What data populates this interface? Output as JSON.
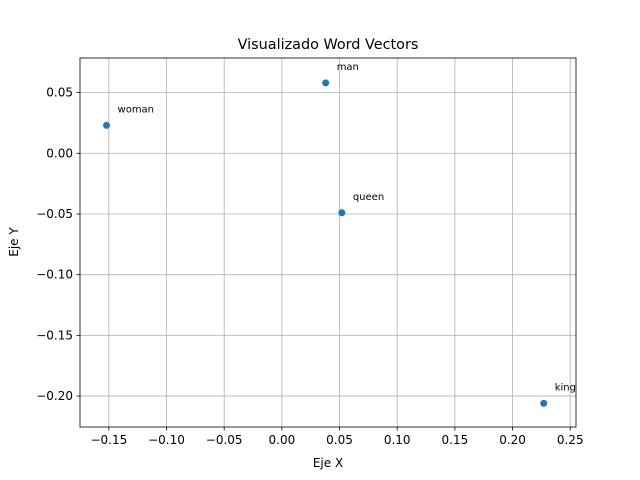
{
  "chart_data": {
    "type": "scatter",
    "title": "Visualizado Word Vectors",
    "xlabel": "Eje X",
    "ylabel": "Eje Y",
    "xlim": [
      -0.175,
      0.255
    ],
    "ylim": [
      -0.2255,
      0.0785
    ],
    "xticks": [
      -0.15,
      -0.1,
      -0.05,
      0.0,
      0.05,
      0.1,
      0.15,
      0.2,
      0.25
    ],
    "xtick_labels": [
      "−0.15",
      "−0.10",
      "−0.05",
      "0.00",
      "0.05",
      "0.10",
      "0.15",
      "0.20",
      "0.25"
    ],
    "yticks": [
      0.05,
      0.0,
      -0.05,
      -0.1,
      -0.15,
      -0.2
    ],
    "ytick_labels": [
      "0.05",
      "0.00",
      "−0.05",
      "−0.10",
      "−0.15",
      "−0.20"
    ],
    "grid": true,
    "color": "#1f77b4",
    "points": [
      {
        "label": "man",
        "x": 0.038,
        "y": 0.058
      },
      {
        "label": "woman",
        "x": -0.152,
        "y": 0.023
      },
      {
        "label": "queen",
        "x": 0.052,
        "y": -0.049
      },
      {
        "label": "king",
        "x": 0.227,
        "y": -0.206
      }
    ]
  }
}
